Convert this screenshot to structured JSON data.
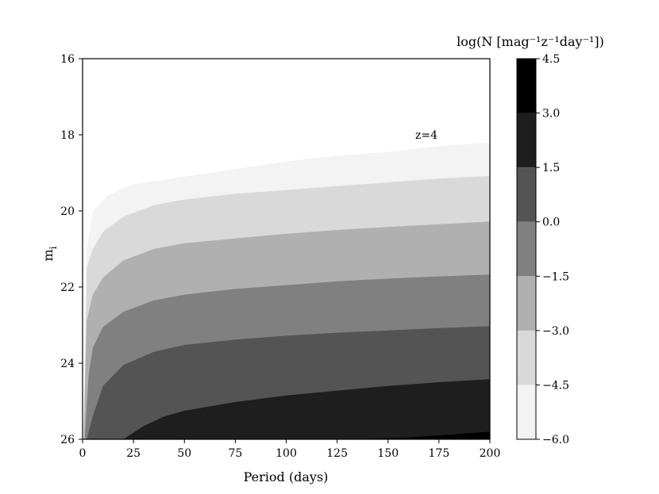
{
  "chart_data": {
    "type": "filled-contour",
    "xlabel": "Period (days)",
    "ylabel_main": "m",
    "ylabel_sub": "i",
    "annotation": "z=4",
    "xlim": [
      0,
      200
    ],
    "ylim": [
      16,
      26
    ],
    "y_inverted": true,
    "x_ticks": [
      0,
      25,
      50,
      75,
      100,
      125,
      150,
      175,
      200
    ],
    "y_ticks": [
      16,
      18,
      20,
      22,
      24,
      26
    ],
    "colorbar": {
      "label": "log(N [mag⁻¹z⁻¹day⁻¹])",
      "levels": [
        -6.0,
        -4.5,
        -3.0,
        -1.5,
        0.0,
        1.5,
        3.0,
        4.5
      ],
      "tick_labels": [
        "−6.0",
        "−4.5",
        "−3.0",
        "−1.5",
        "0.0",
        "1.5",
        "3.0",
        "4.5"
      ],
      "colors": [
        "#f3f3f3",
        "#d9d9d9",
        "#b0b0b0",
        "#808080",
        "#545454",
        "#1e1e1e",
        "#000000"
      ]
    },
    "contour_boundaries": [
      {
        "level": -6.0,
        "points": [
          [
            1.5,
            26
          ],
          [
            2,
            21.0
          ],
          [
            5,
            20.0
          ],
          [
            12,
            19.6
          ],
          [
            25,
            19.3
          ],
          [
            50,
            19.1
          ],
          [
            75,
            18.9
          ],
          [
            100,
            18.7
          ],
          [
            125,
            18.55
          ],
          [
            150,
            18.45
          ],
          [
            175,
            18.3
          ],
          [
            200,
            18.2
          ]
        ]
      },
      {
        "level": -4.5,
        "points": [
          [
            0.5,
            26
          ],
          [
            2,
            21.5
          ],
          [
            5,
            21.0
          ],
          [
            10,
            20.55
          ],
          [
            20,
            20.15
          ],
          [
            35,
            19.85
          ],
          [
            50,
            19.7
          ],
          [
            75,
            19.55
          ],
          [
            100,
            19.45
          ],
          [
            125,
            19.35
          ],
          [
            150,
            19.25
          ],
          [
            175,
            19.15
          ],
          [
            200,
            19.08
          ]
        ]
      },
      {
        "level": -3.0,
        "points": [
          [
            0.5,
            26
          ],
          [
            2,
            22.9
          ],
          [
            5,
            22.2
          ],
          [
            10,
            21.75
          ],
          [
            20,
            21.3
          ],
          [
            35,
            21.0
          ],
          [
            50,
            20.85
          ],
          [
            75,
            20.72
          ],
          [
            100,
            20.6
          ],
          [
            125,
            20.5
          ],
          [
            150,
            20.42
          ],
          [
            175,
            20.35
          ],
          [
            200,
            20.28
          ]
        ]
      },
      {
        "level": -1.5,
        "points": [
          [
            1,
            26
          ],
          [
            3,
            24.3
          ],
          [
            5,
            23.6
          ],
          [
            10,
            23.05
          ],
          [
            20,
            22.65
          ],
          [
            35,
            22.35
          ],
          [
            50,
            22.2
          ],
          [
            75,
            22.05
          ],
          [
            100,
            21.95
          ],
          [
            125,
            21.85
          ],
          [
            150,
            21.78
          ],
          [
            175,
            21.72
          ],
          [
            200,
            21.67
          ]
        ]
      },
      {
        "level": 0.0,
        "points": [
          [
            2,
            26
          ],
          [
            5,
            25.4
          ],
          [
            10,
            24.6
          ],
          [
            20,
            24.05
          ],
          [
            35,
            23.7
          ],
          [
            50,
            23.52
          ],
          [
            75,
            23.38
          ],
          [
            100,
            23.28
          ],
          [
            125,
            23.2
          ],
          [
            150,
            23.14
          ],
          [
            175,
            23.08
          ],
          [
            200,
            23.03
          ]
        ]
      },
      {
        "level": 1.5,
        "points": [
          [
            20,
            26
          ],
          [
            30,
            25.65
          ],
          [
            40,
            25.4
          ],
          [
            50,
            25.25
          ],
          [
            75,
            25.02
          ],
          [
            100,
            24.85
          ],
          [
            125,
            24.72
          ],
          [
            150,
            24.6
          ],
          [
            175,
            24.5
          ],
          [
            200,
            24.42
          ]
        ]
      },
      {
        "level": 3.0,
        "points": [
          [
            135,
            26
          ],
          [
            160,
            25.95
          ],
          [
            180,
            25.88
          ],
          [
            200,
            25.8
          ]
        ]
      }
    ]
  }
}
